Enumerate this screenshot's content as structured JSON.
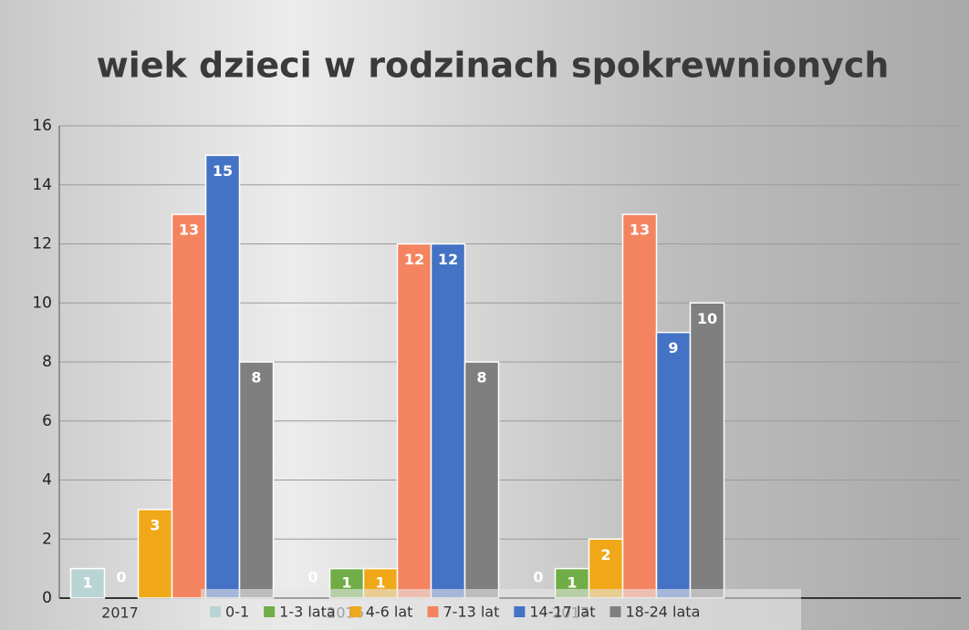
{
  "chart_data": {
    "type": "bar",
    "title": "wiek dzieci w rodzinach spokrewnionych",
    "categories": [
      "2017",
      "2016",
      "2017",
      null
    ],
    "series": [
      {
        "name": "0-1",
        "color": "#b9d4d4",
        "values": [
          1,
          0,
          0,
          null
        ]
      },
      {
        "name": "1-3 lata",
        "color": "#70ad47",
        "values": [
          0,
          1,
          1,
          null
        ]
      },
      {
        "name": "4-6 lat",
        "color": "#f0a818",
        "values": [
          3,
          1,
          2,
          null
        ]
      },
      {
        "name": "7-13 lat",
        "color": "#f4845f",
        "values": [
          13,
          12,
          13,
          null
        ]
      },
      {
        "name": "14-17 lat",
        "color": "#4472c4",
        "values": [
          15,
          12,
          9,
          null
        ]
      },
      {
        "name": "18-24 lata",
        "color": "#7f7f7f",
        "values": [
          8,
          8,
          10,
          null
        ]
      }
    ],
    "ylim": [
      0,
      16
    ],
    "yticks": [
      0,
      2,
      4,
      6,
      8,
      10,
      12,
      14,
      16
    ],
    "grid": true,
    "legend": "bottom"
  }
}
